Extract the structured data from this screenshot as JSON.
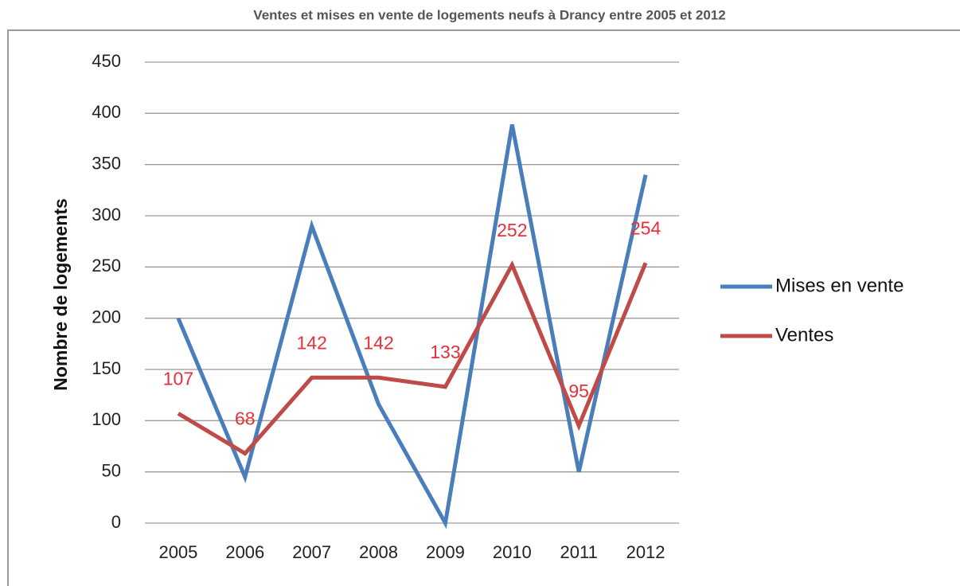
{
  "chart_data": {
    "type": "line",
    "title": "Ventes et mises en vente de logements neufs à Drancy entre 2005 et 2012",
    "y_label": "Nombre de logements",
    "categories": [
      "2005",
      "2006",
      "2007",
      "2008",
      "2009",
      "2010",
      "2011",
      "2012"
    ],
    "series": [
      {
        "name": "Mises en vente",
        "color": "#4a7ebb",
        "values": [
          200,
          45,
          290,
          116,
          0,
          389,
          50,
          340
        ]
      },
      {
        "name": "Ventes",
        "color": "#be4b48",
        "label_color": "#e8303a",
        "values": [
          107,
          68,
          142,
          142,
          133,
          252,
          95,
          254
        ],
        "show_labels": true
      }
    ],
    "ylim": [
      0,
      450
    ],
    "yticks": [
      0,
      50,
      100,
      150,
      200,
      250,
      300,
      350,
      400,
      450
    ],
    "grid": true,
    "legend": "right"
  }
}
